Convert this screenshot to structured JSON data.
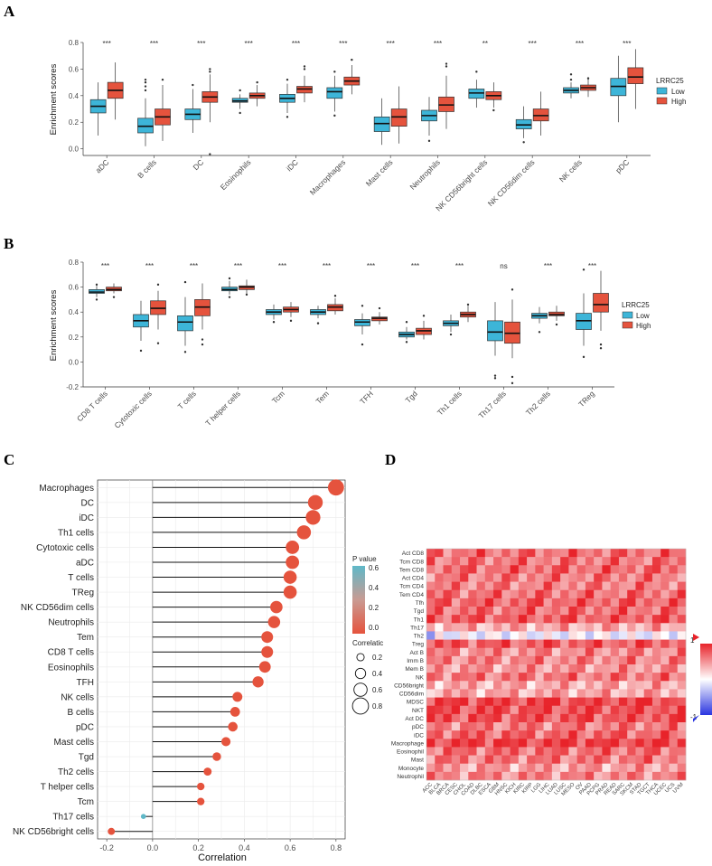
{
  "panels": {
    "a": "A",
    "b": "B",
    "c": "C",
    "d": "D"
  },
  "colors": {
    "low": "#3db5d8",
    "high": "#e5533d",
    "lollipop_high": "#e5533d",
    "lollipop_low": "#5fb8c8"
  },
  "chart_data": [
    {
      "id": "A",
      "type": "box",
      "title": "",
      "ylabel": "Enrichment scores",
      "ylim": [
        -0.05,
        0.8
      ],
      "yticks": [
        0.0,
        0.2,
        0.4,
        0.6,
        0.8
      ],
      "ytick_labels": [
        "0.0",
        "0.2",
        "0.4",
        "0.6",
        "0.8"
      ],
      "legend": {
        "title": "LRRC25",
        "labels": [
          "Low",
          "High"
        ],
        "position": "right"
      },
      "categories": [
        "aDC",
        "B cells",
        "DC",
        "Eosinophils",
        "iDC",
        "Macrophages",
        "Mast cells",
        "Neutrophils",
        "NK CD56bright cells",
        "NK CD56dim cells",
        "NK cells",
        "pDC"
      ],
      "significance": [
        "***",
        "***",
        "***",
        "***",
        "***",
        "***",
        "***",
        "***",
        "**",
        "***",
        "***",
        "***"
      ],
      "series": [
        {
          "name": "Low",
          "boxes": [
            [
              0.1,
              0.27,
              0.32,
              0.37,
              0.5
            ],
            [
              0.02,
              0.12,
              0.17,
              0.23,
              0.38
            ],
            [
              0.12,
              0.22,
              0.26,
              0.3,
              0.45
            ],
            [
              0.3,
              0.35,
              0.36,
              0.38,
              0.41
            ],
            [
              0.27,
              0.35,
              0.38,
              0.41,
              0.49
            ],
            [
              0.28,
              0.38,
              0.43,
              0.46,
              0.55
            ],
            [
              0.03,
              0.13,
              0.19,
              0.24,
              0.38
            ],
            [
              0.1,
              0.21,
              0.25,
              0.29,
              0.39
            ],
            [
              0.31,
              0.38,
              0.42,
              0.45,
              0.52
            ],
            [
              0.08,
              0.15,
              0.18,
              0.22,
              0.32
            ],
            [
              0.38,
              0.42,
              0.44,
              0.46,
              0.5
            ],
            [
              0.2,
              0.4,
              0.47,
              0.53,
              0.7
            ]
          ],
          "outliers": [
            [],
            [
              0.44,
              0.47,
              0.5,
              0.52
            ],
            [
              0.48
            ],
            [
              0.27,
              0.44
            ],
            [
              0.24,
              0.52
            ],
            [
              0.25,
              0.58
            ],
            [],
            [
              0.06
            ],
            [
              0.58
            ],
            [
              0.05
            ],
            [
              0.52,
              0.56
            ],
            []
          ]
        },
        {
          "name": "High",
          "boxes": [
            [
              0.22,
              0.38,
              0.44,
              0.5,
              0.65
            ],
            [
              0.06,
              0.18,
              0.24,
              0.3,
              0.48
            ],
            [
              0.2,
              0.35,
              0.39,
              0.43,
              0.56
            ],
            [
              0.32,
              0.38,
              0.4,
              0.42,
              0.48
            ],
            [
              0.35,
              0.42,
              0.45,
              0.47,
              0.55
            ],
            [
              0.41,
              0.48,
              0.51,
              0.54,
              0.63
            ],
            [
              0.04,
              0.17,
              0.24,
              0.3,
              0.47
            ],
            [
              0.15,
              0.28,
              0.33,
              0.39,
              0.55
            ],
            [
              0.31,
              0.37,
              0.4,
              0.43,
              0.5
            ],
            [
              0.1,
              0.21,
              0.25,
              0.3,
              0.43
            ],
            [
              0.39,
              0.44,
              0.46,
              0.48,
              0.54
            ],
            [
              0.3,
              0.49,
              0.54,
              0.61,
              0.75
            ]
          ],
          "outliers": [
            [],
            [
              0.52
            ],
            [
              0.58,
              0.6,
              -0.04
            ],
            [
              0.5
            ],
            [
              0.6,
              0.62
            ],
            [
              0.67
            ],
            [],
            [
              0.62,
              0.64
            ],
            [
              0.29
            ],
            [],
            [
              0.53
            ],
            []
          ]
        }
      ]
    },
    {
      "id": "B",
      "type": "box",
      "title": "",
      "ylabel": "Enrichment scores",
      "ylim": [
        -0.2,
        0.8
      ],
      "yticks": [
        -0.2,
        0.0,
        0.2,
        0.4,
        0.6,
        0.8
      ],
      "ytick_labels": [
        "-0.2",
        "0.0",
        "0.2",
        "0.4",
        "0.6",
        "0.8"
      ],
      "legend": {
        "title": "LRRC25",
        "labels": [
          "Low",
          "High"
        ],
        "position": "right"
      },
      "categories": [
        "CD8 T cells",
        "Cytotoxic cells",
        "T cells",
        "T helper cells",
        "Tcm",
        "Tem",
        "TFH",
        "Tgd",
        "Th1 cells",
        "Th17 cells",
        "Th2 cells",
        "TReg"
      ],
      "significance": [
        "***",
        "***",
        "***",
        "***",
        "***",
        "***",
        "***",
        "***",
        "***",
        "ns",
        "***",
        "***"
      ],
      "series": [
        {
          "name": "Low",
          "boxes": [
            [
              0.52,
              0.55,
              0.56,
              0.58,
              0.61
            ],
            [
              0.17,
              0.28,
              0.33,
              0.38,
              0.49
            ],
            [
              0.13,
              0.25,
              0.32,
              0.37,
              0.52
            ],
            [
              0.54,
              0.57,
              0.58,
              0.6,
              0.65
            ],
            [
              0.34,
              0.38,
              0.4,
              0.42,
              0.46
            ],
            [
              0.35,
              0.38,
              0.4,
              0.42,
              0.45
            ],
            [
              0.22,
              0.29,
              0.32,
              0.34,
              0.39
            ],
            [
              0.18,
              0.2,
              0.22,
              0.24,
              0.28
            ],
            [
              0.24,
              0.29,
              0.31,
              0.33,
              0.38
            ],
            [
              0.05,
              0.17,
              0.24,
              0.33,
              0.48
            ],
            [
              0.31,
              0.35,
              0.37,
              0.39,
              0.44
            ],
            [
              0.13,
              0.26,
              0.33,
              0.39,
              0.55
            ]
          ],
          "outliers": [
            [
              0.5,
              0.62
            ],
            [
              0.09
            ],
            [
              0.08,
              0.64
            ],
            [
              0.52,
              0.67
            ],
            [
              0.32
            ],
            [
              0.31
            ],
            [
              0.14,
              0.45
            ],
            [
              0.16,
              0.32
            ],
            [
              0.22
            ],
            [
              -0.11,
              -0.13
            ],
            [
              0.24
            ],
            [
              0.04,
              0.74
            ]
          ]
        },
        {
          "name": "High",
          "boxes": [
            [
              0.55,
              0.57,
              0.58,
              0.6,
              0.63
            ],
            [
              0.26,
              0.38,
              0.43,
              0.49,
              0.57
            ],
            [
              0.26,
              0.37,
              0.44,
              0.5,
              0.63
            ],
            [
              0.55,
              0.58,
              0.6,
              0.61,
              0.66
            ],
            [
              0.36,
              0.4,
              0.42,
              0.44,
              0.48
            ],
            [
              0.38,
              0.41,
              0.44,
              0.46,
              0.51
            ],
            [
              0.3,
              0.33,
              0.35,
              0.36,
              0.4
            ],
            [
              0.18,
              0.22,
              0.25,
              0.27,
              0.33
            ],
            [
              0.32,
              0.36,
              0.38,
              0.4,
              0.45
            ],
            [
              0.03,
              0.15,
              0.23,
              0.32,
              0.5
            ],
            [
              0.33,
              0.37,
              0.38,
              0.4,
              0.45
            ],
            [
              0.25,
              0.4,
              0.46,
              0.55,
              0.73
            ]
          ],
          "outliers": [
            [
              0.52
            ],
            [
              0.15,
              0.62
            ],
            [
              0.14,
              0.18
            ],
            [
              0.54
            ],
            [
              0.33
            ],
            [
              0.53
            ],
            [
              0.43
            ],
            [
              0.37
            ],
            [
              0.46
            ],
            [
              -0.12,
              -0.17,
              0.58
            ],
            [
              0.3
            ],
            [
              0.11,
              0.14
            ]
          ]
        }
      ]
    },
    {
      "id": "C",
      "type": "lollipop",
      "xlabel": "Correlation",
      "xlim": [
        -0.24,
        0.84
      ],
      "xticks": [
        -0.2,
        0.0,
        0.2,
        0.4,
        0.6,
        0.8
      ],
      "xtick_labels": [
        "-0.2",
        "0.0",
        "0.2",
        "0.4",
        "0.6",
        "0.8"
      ],
      "legend_pvalue": {
        "title": "P value",
        "ticks": [
          "0.6",
          "0.4",
          "0.2",
          "0.0"
        ]
      },
      "legend_size": {
        "title": "Correlatic",
        "labels": [
          "0.2",
          "0.4",
          "0.6",
          "0.8"
        ],
        "values": [
          0.2,
          0.4,
          0.6,
          0.8
        ]
      },
      "categories": [
        "Macrophages",
        "DC",
        "iDC",
        "Th1 cells",
        "Cytotoxic cells",
        "aDC",
        "T cells",
        "TReg",
        "NK CD56dim cells",
        "Neutrophils",
        "Tem",
        "CD8 T cells",
        "Eosinophils",
        "TFH",
        "NK cells",
        "B cells",
        "pDC",
        "Mast cells",
        "Tgd",
        "Th2 cells",
        "T helper cells",
        "Tcm",
        "Th17 cells",
        "NK CD56bright cells"
      ],
      "values": [
        0.8,
        0.71,
        0.7,
        0.66,
        0.61,
        0.61,
        0.6,
        0.6,
        0.54,
        0.53,
        0.5,
        0.5,
        0.49,
        0.46,
        0.37,
        0.36,
        0.35,
        0.32,
        0.28,
        0.24,
        0.21,
        0.21,
        -0.04,
        -0.18
      ],
      "pvalues": [
        0,
        0,
        0,
        0,
        0,
        0,
        0,
        0,
        0,
        0,
        0,
        0,
        0,
        0,
        0,
        0,
        0,
        0,
        0,
        0,
        0,
        0,
        0.55,
        0
      ]
    },
    {
      "id": "D",
      "type": "heatmap",
      "rows": [
        "Act CD8",
        "Tcm CD8",
        "Tem CD8",
        "Act CD4",
        "Tcm CD4",
        "Tem CD4",
        "Tfh",
        "Tgd",
        "Th1",
        "Th17",
        "Th2",
        "Treg",
        "Act B",
        "Imm B",
        "Mem B",
        "NK",
        "CD56bright",
        "CD56dim",
        "MDSC",
        "NKT",
        "Act DC",
        "pDC",
        "iDC",
        "Macrophage",
        "Eosinophil",
        "Mast",
        "Monocyte",
        "Neutrophil"
      ],
      "columns": [
        "ACC",
        "BLCA",
        "BRCA",
        "CESC",
        "CHOL",
        "COAD",
        "DLBC",
        "ESCA",
        "GBM",
        "HNSC",
        "KICH",
        "KIRC",
        "KIRP",
        "LGG",
        "LIHC",
        "LUAD",
        "LUSC",
        "MESO",
        "OV",
        "PAAD",
        "PCPG",
        "PRAD",
        "READ",
        "SARC",
        "SKCM",
        "STAD",
        "TGCT",
        "THCA",
        "UCEC",
        "UCS",
        "UVM"
      ],
      "row_base": [
        0.66,
        0.62,
        0.68,
        0.6,
        0.58,
        0.64,
        0.72,
        0.66,
        0.74,
        0.38,
        -0.1,
        0.74,
        0.52,
        0.56,
        0.48,
        0.62,
        0.38,
        0.4,
        0.86,
        0.8,
        0.78,
        0.6,
        0.7,
        0.88,
        0.66,
        0.62,
        0.44,
        0.55
      ],
      "legend_ticks": [
        "1",
        "-1"
      ],
      "colormap": [
        "#2a35e0",
        "#ffffff",
        "#e8232a"
      ]
    }
  ]
}
